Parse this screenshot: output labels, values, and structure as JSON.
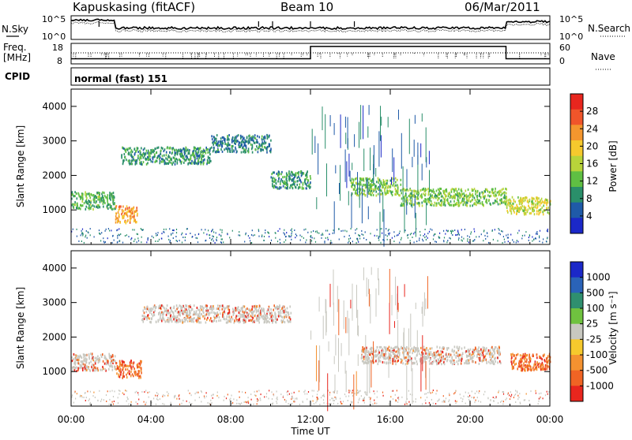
{
  "header": {
    "station": "Kapuskasing (fitACF)",
    "beam": "Beam 10",
    "date": "06/Mar/2011"
  },
  "top_panels": {
    "nsky_label": "N.Sky",
    "nsearch_label": "N.Search",
    "freq_label_1": "Freq.",
    "freq_label_2": "[MHz]",
    "nave_label": "Nave",
    "cpid_label": "CPID",
    "cpid_value": "normal (fast) 151",
    "noise_ticks_left": [
      "10^5",
      "10^0"
    ],
    "noise_ticks_right": [
      "10^5",
      "10^0"
    ],
    "freq_ticks_left": [
      "18",
      "8"
    ],
    "freq_ticks_right": [
      "60",
      "0"
    ],
    "freq_steps": [
      {
        "t": 0,
        "freq": 10.5
      },
      {
        "t": 12,
        "freq": 16.5
      },
      {
        "t": 21.8,
        "freq": 10.5
      }
    ]
  },
  "x_axis": {
    "label": "Time UT",
    "ticks": [
      "00:00",
      "04:00",
      "08:00",
      "12:00",
      "16:00",
      "20:00",
      "00:00"
    ]
  },
  "power_colorbar": {
    "label": "Power [dB]",
    "ticks": [
      "28",
      "24",
      "20",
      "16",
      "12",
      "8",
      "4"
    ],
    "colors": [
      "#e8261e",
      "#f0552a",
      "#f4962e",
      "#f6c92d",
      "#b8d43a",
      "#5fbf43",
      "#2a8f6a",
      "#1f5aa8",
      "#1b28c8"
    ]
  },
  "velocity_colorbar": {
    "label": "Velocity [m s⁻¹]",
    "ticks": [
      "1000",
      "500",
      "100",
      "25",
      "-25",
      "-100",
      "-500",
      "-1000"
    ],
    "colors": [
      "#1b28c8",
      "#2a63b8",
      "#2f8f6f",
      "#6fc23f",
      "#c8c8c0",
      "#f6c92d",
      "#f49230",
      "#f06424",
      "#e8261e"
    ]
  },
  "chart_data": {
    "type": "heatmap",
    "title": "Kapuskasing (fitACF)  Beam 10  06/Mar/2011",
    "xlabel": "Time UT",
    "ylabel": "Slant Range [km]",
    "xlim": [
      "00:00",
      "24:00"
    ],
    "ylim": [
      0,
      4500
    ],
    "yticks": [
      1000,
      2000,
      3000,
      4000
    ],
    "panels": [
      {
        "name": "Power",
        "colorbar_label": "Power [dB]",
        "colorbar_range": [
          0,
          30
        ],
        "features": [
          {
            "t_start": 0.0,
            "t_end": 2.2,
            "range_km": 1300,
            "power_dB": 10
          },
          {
            "t_start": 2.2,
            "t_end": 3.3,
            "range_km": 900,
            "power_dB": 22
          },
          {
            "t_start": 2.5,
            "t_end": 7.0,
            "range_km": 2600,
            "power_dB": 8
          },
          {
            "t_start": 7.0,
            "t_end": 10.0,
            "range_km": 2950,
            "power_dB": 6
          },
          {
            "t_start": 10.0,
            "t_end": 12.0,
            "range_km": 1900,
            "power_dB": 8
          },
          {
            "t_start": 14.0,
            "t_end": 16.5,
            "range_km": 1700,
            "power_dB": 12
          },
          {
            "t_start": 16.5,
            "t_end": 21.8,
            "range_km": 1400,
            "power_dB": 12
          },
          {
            "t_start": 21.8,
            "t_end": 24.0,
            "range_km": 1150,
            "power_dB": 16
          }
        ]
      },
      {
        "name": "Velocity",
        "colorbar_label": "Velocity [m s⁻¹]",
        "colorbar_range": [
          -1000,
          1000
        ],
        "features": [
          {
            "t_start": 0.0,
            "t_end": 2.2,
            "range_km": 1300,
            "velocity": 0
          },
          {
            "t_start": 2.2,
            "t_end": 3.5,
            "range_km": 1100,
            "velocity": -200
          },
          {
            "t_start": 3.5,
            "t_end": 11.0,
            "range_km": 2700,
            "velocity": 0
          },
          {
            "t_start": 14.5,
            "t_end": 21.5,
            "range_km": 1500,
            "velocity": 0
          },
          {
            "t_start": 22.0,
            "t_end": 24.0,
            "range_km": 1300,
            "velocity": -300
          }
        ]
      }
    ]
  }
}
